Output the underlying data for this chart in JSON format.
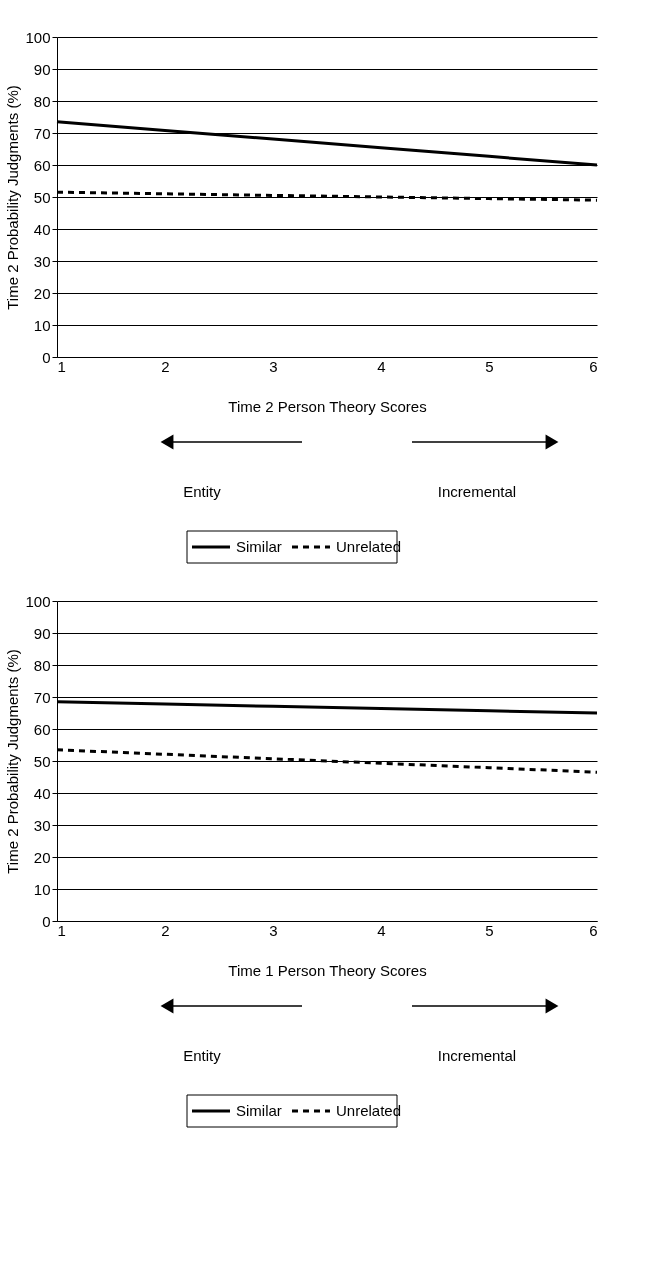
{
  "chart_data": [
    {
      "type": "line",
      "xlabel": "Time 2 Person Theory Scores",
      "ylabel": "Time 2 Probability Judgments (%)",
      "x": [
        1,
        2,
        3,
        4,
        5,
        6
      ],
      "xlim": [
        1,
        6
      ],
      "xticks": [
        1,
        2,
        3,
        4,
        5,
        6
      ],
      "ylim": [
        0,
        100
      ],
      "yticks": [
        0,
        10,
        20,
        30,
        40,
        50,
        60,
        70,
        80,
        90,
        100
      ],
      "grid": "y",
      "legend": "bottom",
      "annotations": [
        "Entity",
        "Incremental"
      ],
      "series": [
        {
          "name": "Similar",
          "color": "#000000",
          "line_style": "solid",
          "values": [
            73.5,
            70.8,
            68.1,
            65.4,
            62.7,
            60
          ]
        },
        {
          "name": "Unrelated",
          "color": "#000000",
          "line_style": "dashed",
          "values": [
            51.5,
            51,
            50.5,
            50,
            49.5,
            49
          ]
        }
      ]
    },
    {
      "type": "line",
      "xlabel": "Time 1 Person Theory Scores",
      "ylabel": "Time 2 Probability Judgments (%)",
      "x": [
        1,
        2,
        3,
        4,
        5,
        6
      ],
      "xlim": [
        1,
        6
      ],
      "xticks": [
        1,
        2,
        3,
        4,
        5,
        6
      ],
      "ylim": [
        0,
        100
      ],
      "yticks": [
        0,
        10,
        20,
        30,
        40,
        50,
        60,
        70,
        80,
        90,
        100
      ],
      "grid": "y",
      "legend": "bottom",
      "annotations": [
        "Entity",
        "Incremental"
      ],
      "series": [
        {
          "name": "Similar",
          "color": "#000000",
          "line_style": "solid",
          "values": [
            68.5,
            67.8,
            67.1,
            66.4,
            65.7,
            65
          ]
        },
        {
          "name": "Unrelated",
          "color": "#000000",
          "line_style": "dashed",
          "values": [
            53.5,
            52.1,
            50.7,
            49.3,
            47.9,
            46.5
          ]
        }
      ]
    }
  ]
}
